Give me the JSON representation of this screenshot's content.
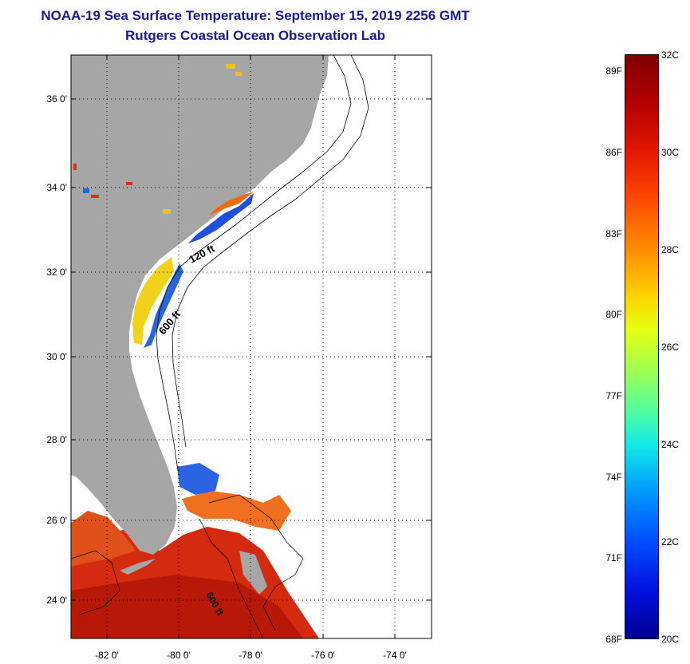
{
  "title_line1": "NOAA-19 Sea Surface Temperature:  September 15, 2019 2256 GMT",
  "title_line2": "Rutgers Coastal Ocean Observation Lab",
  "map": {
    "lat_ticks": [
      "36 0'",
      "34 0'",
      "32 0'",
      "30 0'",
      "28 0'",
      "26 0'",
      "24 0'"
    ],
    "lon_ticks": [
      "-82 0'",
      "-80 0'",
      "-78 0'",
      "-76 0'",
      "-74 0'"
    ],
    "contour_labels": [
      "120 ft",
      "600 ft",
      "600 ft"
    ],
    "land_color": "#a6a6a6",
    "grid_style": "dotted"
  },
  "colorbar": {
    "fahrenheit": [
      "89F",
      "86F",
      "83F",
      "80F",
      "77F",
      "74F",
      "71F",
      "68F"
    ],
    "celsius": [
      "32C",
      "30C",
      "28C",
      "26C",
      "24C",
      "22C",
      "20C"
    ],
    "top_color": "#7f0000",
    "bottom_color": "#00008f"
  }
}
